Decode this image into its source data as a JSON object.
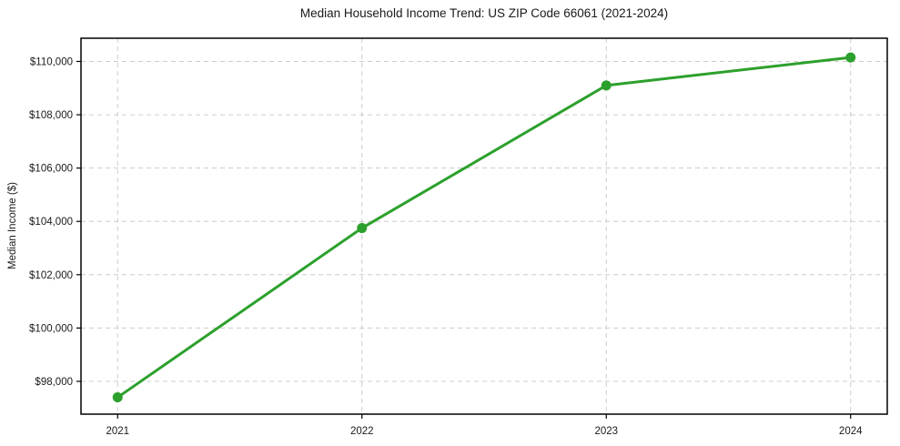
{
  "chart_data": {
    "type": "line",
    "title": "Median Household Income Trend: US ZIP Code 66061 (2021-2024)",
    "ylabel": "Median Income ($)",
    "xlabel": "",
    "x": [
      2021,
      2022,
      2023,
      2024
    ],
    "values": [
      97400,
      103750,
      109100,
      110150
    ],
    "xtick_labels": [
      "2021",
      "2022",
      "2023",
      "2024"
    ],
    "yticks": [
      98000,
      100000,
      102000,
      104000,
      106000,
      108000,
      110000
    ],
    "ytick_labels": [
      "$98,000",
      "$100,000",
      "$102,000",
      "$104,000",
      "$106,000",
      "$108,000",
      "$110,000"
    ],
    "xlim": [
      2020.85,
      2024.15
    ],
    "ylim": [
      96770,
      110870
    ],
    "grid": true,
    "grid_style": "dashed",
    "legend_position": "none",
    "colors": {
      "line": "#2ca02c",
      "marker": "#2ca02c",
      "grid": "#cccccc",
      "axis": "#000000",
      "text": "#1a1a1a",
      "background": "#ffffff"
    }
  }
}
